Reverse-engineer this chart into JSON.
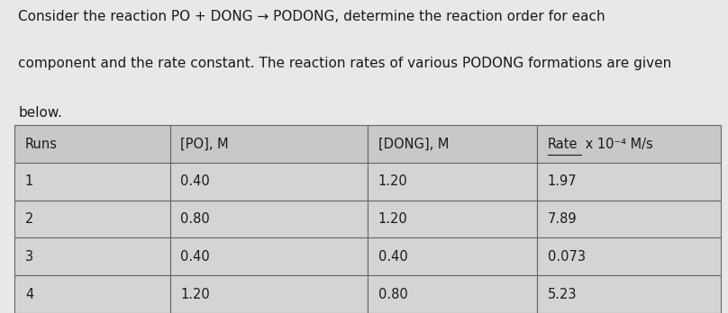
{
  "title_line1": "Consider the reaction PO + DONG → PODONG, determine the reaction order for each",
  "title_line2": "component and the rate constant. The reaction rates of various PODONG formations are given",
  "title_line3": "below.",
  "col_headers": [
    "Runs",
    "[PO], M",
    "[DONG], M",
    "Rate  x 10⁻⁴ M/s"
  ],
  "rows": [
    [
      "1",
      "0.40",
      "1.20",
      "1.97"
    ],
    [
      "2",
      "0.80",
      "1.20",
      "7.89"
    ],
    [
      "3",
      "0.40",
      "0.40",
      "0.073"
    ],
    [
      "4",
      "1.20",
      "0.80",
      "5.23"
    ]
  ],
  "bg_color": "#e8e8e8",
  "cell_bg": "#d4d4d4",
  "header_bg": "#c8c8c8",
  "edge_color": "#666666",
  "text_color": "#1a1a1a",
  "header_fontsize": 10.5,
  "cell_fontsize": 10.5,
  "title_fontsize": 11.0
}
